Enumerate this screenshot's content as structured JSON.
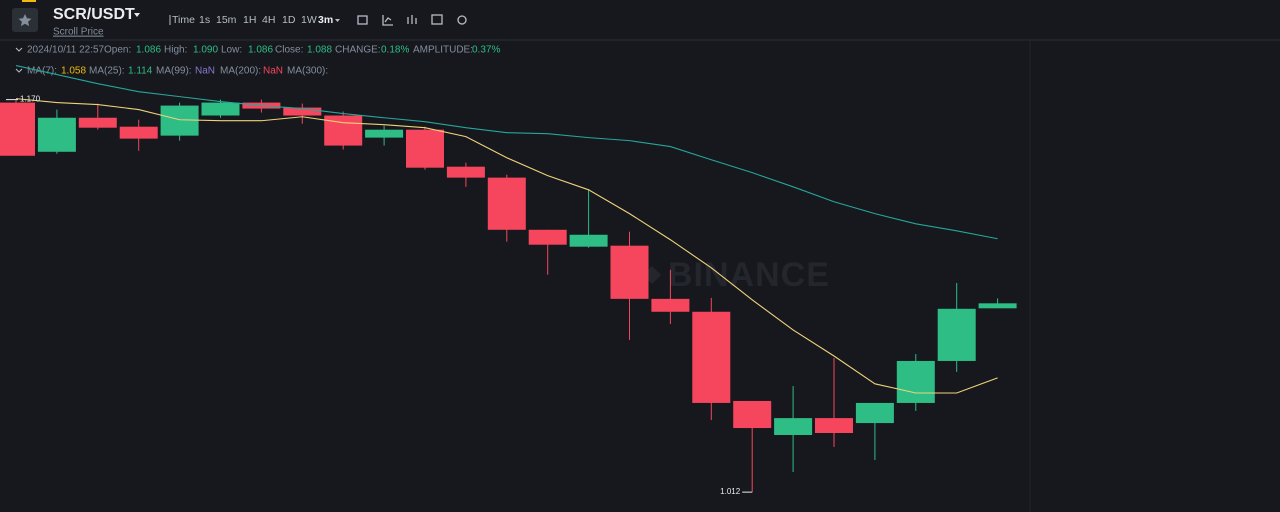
{
  "header": {
    "pair": "SCR/USDT",
    "subtitle": "Scroll Price"
  },
  "toolbar": {
    "intervals": [
      "Time",
      "1s",
      "15m",
      "1H",
      "4H",
      "1D",
      "1W",
      "3m"
    ]
  },
  "info": {
    "date": "2024/10/11 22:57",
    "fields": [
      {
        "label": "Open:",
        "value": "1.086"
      },
      {
        "label": "High:",
        "value": "1.090"
      },
      {
        "label": "Low:",
        "value": "1.086"
      },
      {
        "label": "Close:",
        "value": "1.088"
      },
      {
        "label": "CHANGE:",
        "value": "0.18%"
      },
      {
        "label": "AMPLITUDE:",
        "value": "0.37%"
      }
    ]
  },
  "ma_legend": [
    {
      "label": "MA(7):",
      "value": "1.058"
    },
    {
      "label": "MA(25):",
      "value": "1.114"
    },
    {
      "label": "MA(99):",
      "value": "NaN"
    },
    {
      "label": "MA(200):",
      "value": "NaN"
    },
    {
      "label": "MA(300):"
    }
  ],
  "chart_data": {
    "type": "candlestick",
    "watermark": "BINANCE",
    "high_label": "1.170",
    "low_label": "1.012",
    "up_color": "#2ebd85",
    "down_color": "#f6465d",
    "ylim": [
      1.004,
      1.194
    ],
    "candles": {
      "open": [
        1.1688,
        1.149,
        1.1627,
        1.1591,
        1.1555,
        1.1636,
        1.1688,
        1.1668,
        1.1636,
        1.1547,
        1.1579,
        1.143,
        1.1386,
        1.1176,
        1.1108,
        1.1112,
        1.0898,
        1.0846,
        1.0487,
        1.035,
        1.0418,
        1.0398,
        1.0479,
        1.0648,
        1.086
      ],
      "high": [
        1.17,
        1.166,
        1.1684,
        1.1619,
        1.1688,
        1.17,
        1.17,
        1.1684,
        1.1652,
        1.1595,
        1.1591,
        1.1446,
        1.1398,
        1.1176,
        1.1337,
        1.1168,
        1.1015,
        1.0902,
        1.0487,
        1.0547,
        1.066,
        1.0479,
        1.0676,
        1.0962,
        1.09
      ],
      "low": [
        1.1474,
        1.1482,
        1.1579,
        1.1494,
        1.1535,
        1.1627,
        1.1648,
        1.1603,
        1.1499,
        1.1515,
        1.1418,
        1.1349,
        1.1128,
        1.0995,
        1.1104,
        1.0733,
        1.0797,
        1.041,
        1.012,
        1.0201,
        1.0302,
        1.0249,
        1.0447,
        1.0604,
        1.086
      ],
      "close": [
        1.1474,
        1.1627,
        1.1587,
        1.1543,
        1.1676,
        1.1688,
        1.1664,
        1.1636,
        1.1515,
        1.1579,
        1.1426,
        1.1386,
        1.1176,
        1.1116,
        1.1156,
        1.0898,
        1.0846,
        1.0479,
        1.0378,
        1.0418,
        1.0358,
        1.0479,
        1.0648,
        1.0858,
        1.088
      ]
    },
    "ma_lines": [
      {
        "color": "#f0d27a",
        "values": [
          1.1704,
          1.1688,
          1.168,
          1.166,
          1.1619,
          1.1615,
          1.1615,
          1.1631,
          1.1607,
          1.1599,
          1.1587,
          1.1551,
          1.1466,
          1.1394,
          1.1337,
          1.1241,
          1.1136,
          1.1023,
          1.0894,
          1.0773,
          1.0668,
          1.0556,
          1.0519,
          1.0519,
          1.058
        ]
      },
      {
        "color": "#26a69a",
        "values": [
          1.1837,
          1.1801,
          1.1764,
          1.1732,
          1.1712,
          1.1692,
          1.1676,
          1.1664,
          1.1644,
          1.1627,
          1.1611,
          1.1587,
          1.1567,
          1.1563,
          1.1547,
          1.1535,
          1.1511,
          1.1458,
          1.1406,
          1.1349,
          1.1289,
          1.1241,
          1.12,
          1.1172,
          1.114
        ]
      }
    ]
  }
}
